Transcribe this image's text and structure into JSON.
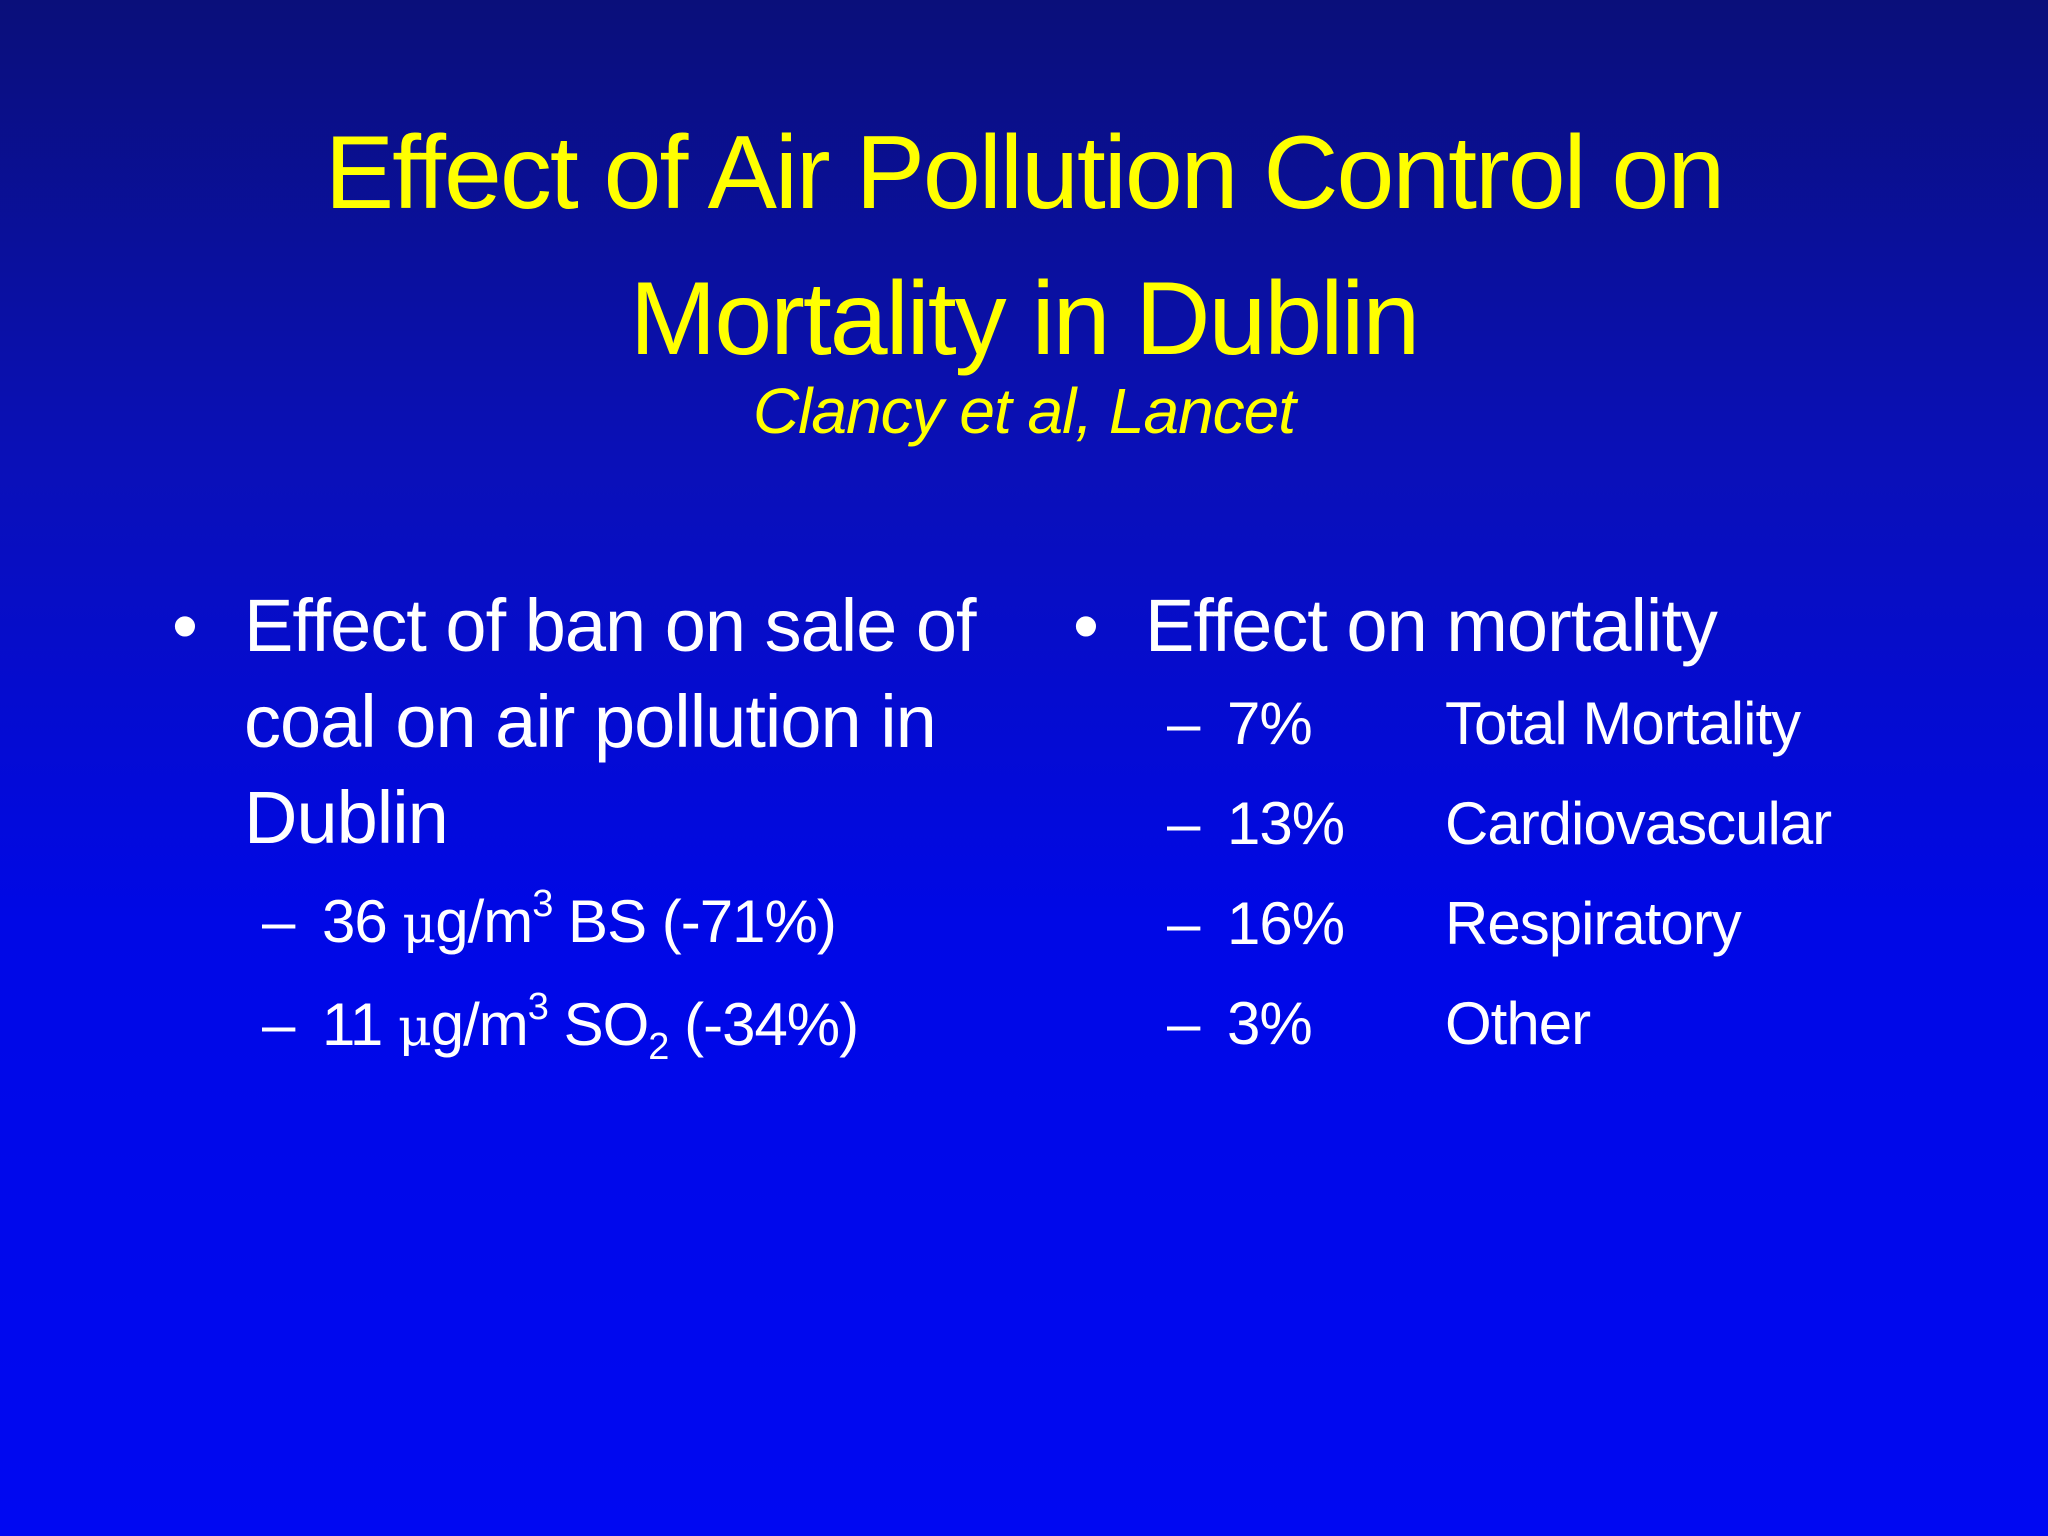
{
  "slide": {
    "title_line1": "Effect of Air Pollution Control on",
    "title_line2": "Mortality in Dublin",
    "subtitle": "Clancy et al, Lancet"
  },
  "left": {
    "bullet_symbol": "•",
    "bullet_text": "Effect of ban on sale of coal on air pollution in Dublin",
    "items": [
      {
        "dash": "–",
        "value": "36 ",
        "mu": "μ",
        "unit": "g/m",
        "sup": "3",
        "pollutant": " BS",
        "sub": "",
        "change": " (-71%)"
      },
      {
        "dash": "–",
        "value": "11 ",
        "mu": "μ",
        "unit": "g/m",
        "sup": "3",
        "pollutant": " SO",
        "sub": "2",
        "change": " (-34%)"
      }
    ]
  },
  "right": {
    "bullet_symbol": "•",
    "bullet_text": "Effect on mortality",
    "items": [
      {
        "dash": "–",
        "pct": "7%",
        "label": "Total Mortality"
      },
      {
        "dash": "–",
        "pct": "13%",
        "label": "Cardiovascular"
      },
      {
        "dash": "–",
        "pct": "16%",
        "label": "Respiratory"
      },
      {
        "dash": "–",
        "pct": "3%",
        "label": "Other"
      }
    ]
  },
  "colors": {
    "background_top": "#0a0f7a",
    "background_bottom": "#0008f2",
    "title": "#ffff00",
    "body_text": "#ffffff"
  }
}
